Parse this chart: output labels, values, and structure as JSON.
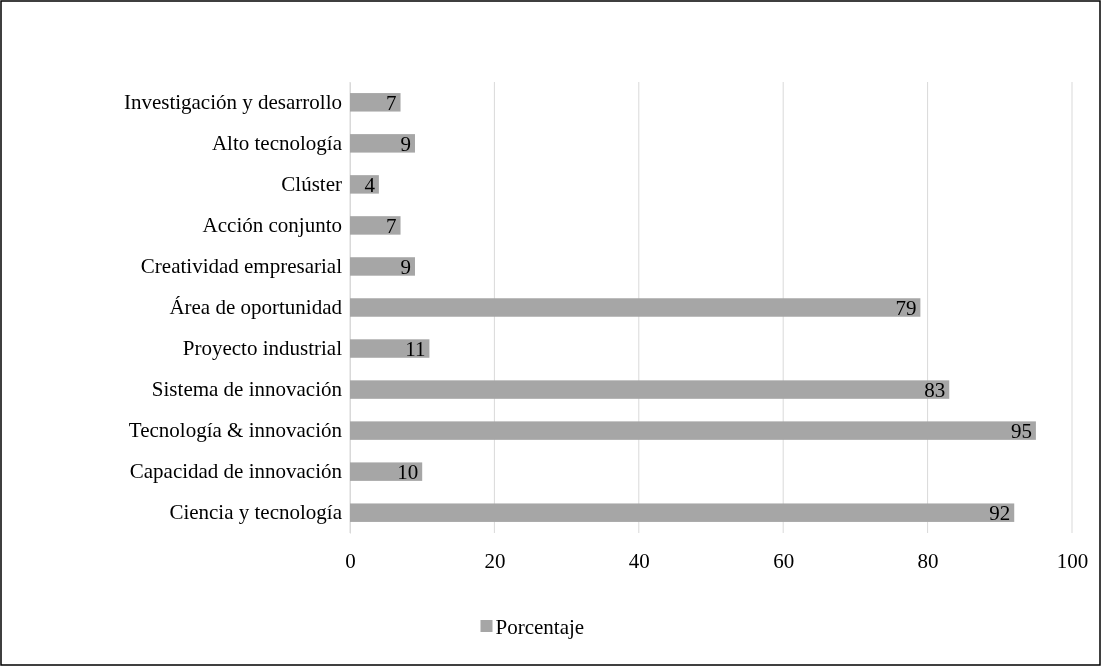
{
  "chart_data": {
    "type": "bar",
    "orientation": "horizontal",
    "categories": [
      "Investigación y desarrollo",
      "Alto tecnología",
      "Clúster",
      "Acción conjunto",
      "Creatividad empresarial",
      "Área de oportunidad",
      "Proyecto industrial",
      "Sistema de innovación",
      "Tecnología & innovación",
      "Capacidad de innovación",
      "Ciencia y tecnología"
    ],
    "series": [
      {
        "name": "Porcentaje",
        "color": "#a6a6a6",
        "values": [
          7,
          9,
          4,
          7,
          9,
          79,
          11,
          83,
          95,
          10,
          92
        ]
      }
    ],
    "xlim": [
      0,
      100
    ],
    "xticks": [
      0,
      20,
      40,
      60,
      80,
      100
    ],
    "grid": "x",
    "legend": "bottom",
    "data_labels": true
  }
}
